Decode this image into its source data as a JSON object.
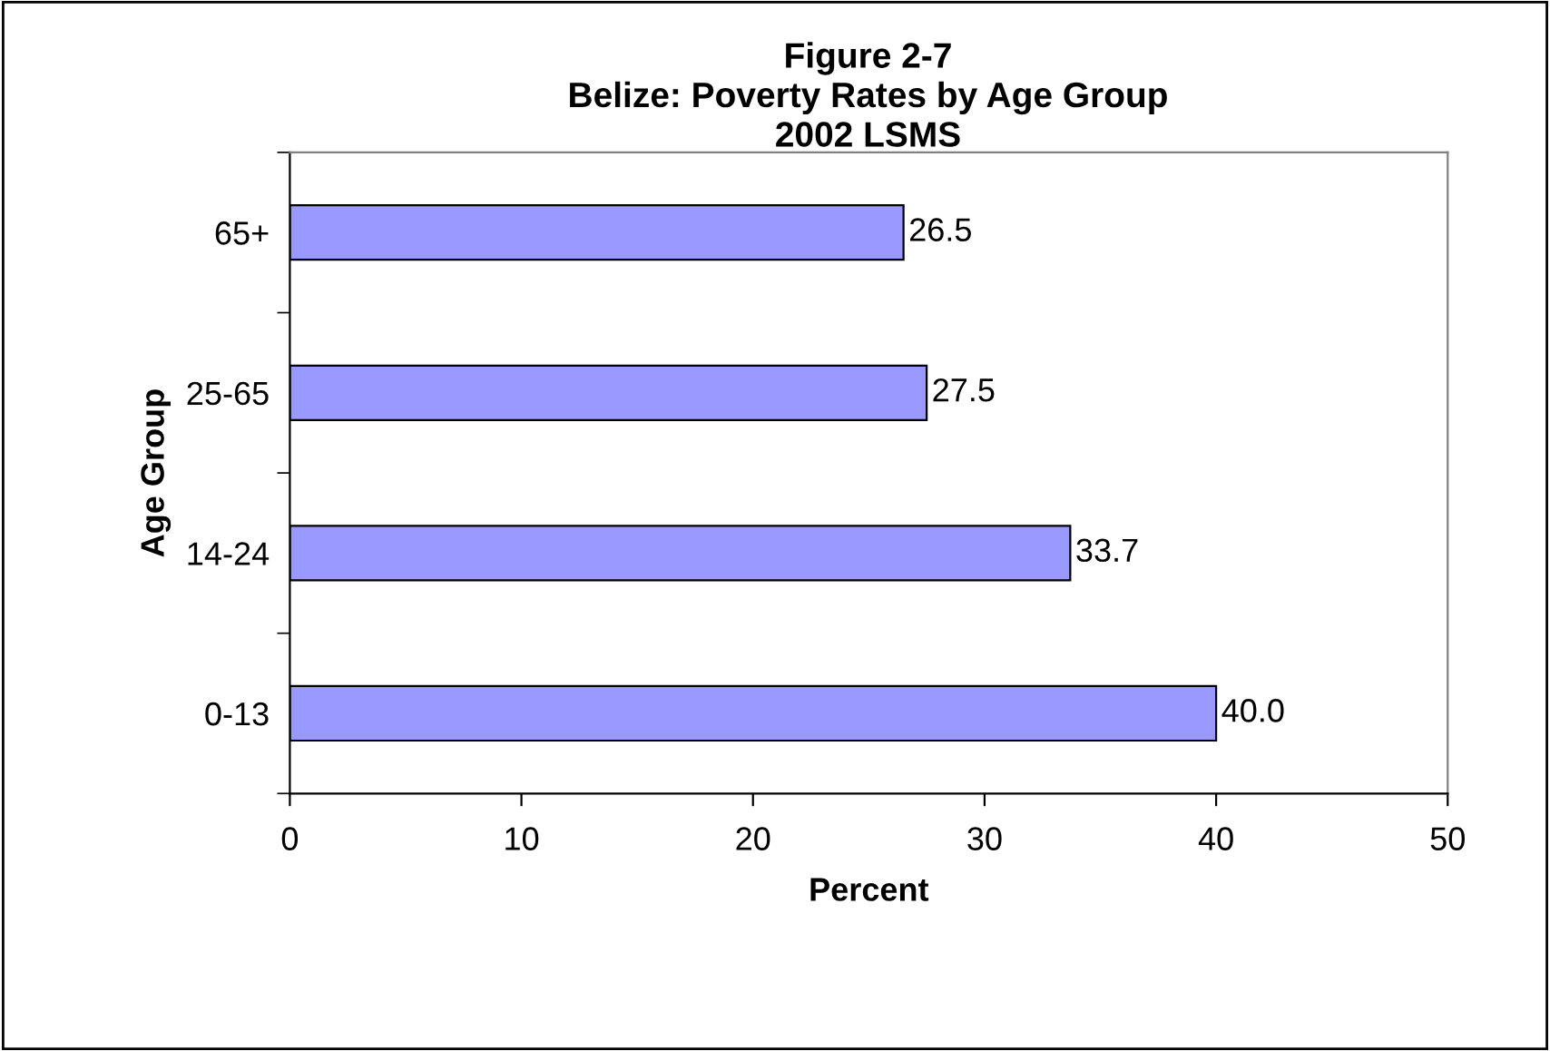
{
  "chart_data": {
    "type": "bar",
    "orientation": "horizontal",
    "title": "Figure 2-7\nBelize: Poverty Rates by Age Group\n2002 LSMS",
    "xlabel": "Percent",
    "ylabel": "Age Group",
    "categories": [
      "65+",
      "25-65",
      "14-24",
      "0-13"
    ],
    "values": [
      26.5,
      27.5,
      33.7,
      40.0
    ],
    "value_labels": [
      "26.5",
      "27.5",
      "33.7",
      "40.0"
    ],
    "color": "#9999ff",
    "xlim": [
      0,
      50
    ],
    "xticks": [
      0,
      10,
      20,
      30,
      40,
      50
    ],
    "grid": false
  }
}
